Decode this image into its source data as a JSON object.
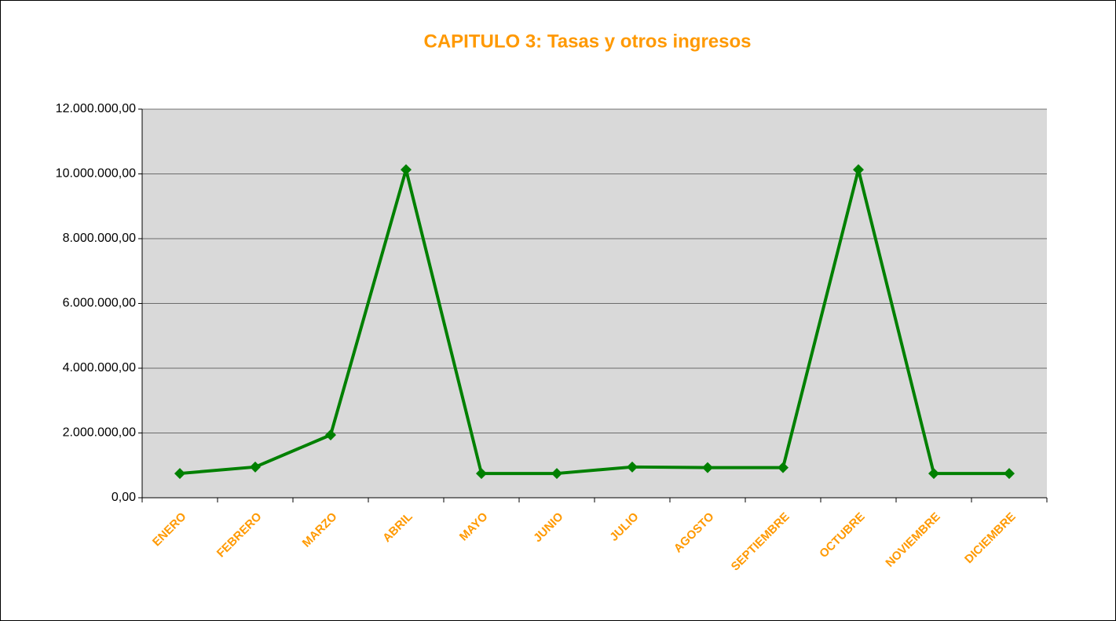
{
  "chart_data": {
    "type": "line",
    "title": "CAPITULO 3: Tasas y otros ingresos",
    "categories": [
      "ENERO",
      "FEBRERO",
      "MARZO",
      "ABRIL",
      "MAYO",
      "JUNIO",
      "JULIO",
      "AGOSTO",
      "SEPTIEMBRE",
      "OCTUBRE",
      "NOVIEMBRE",
      "DICIEMBRE"
    ],
    "series": [
      {
        "name": "CAPITULO 3",
        "color": "#008000",
        "values": [
          750000,
          950000,
          1940000,
          10130000,
          750000,
          750000,
          950000,
          930000,
          930000,
          10130000,
          750000,
          750000
        ]
      }
    ],
    "ylim": [
      0,
      12000000
    ],
    "yticks": [
      {
        "value": 0,
        "label": "0,00"
      },
      {
        "value": 2000000,
        "label": "2.000.000,00"
      },
      {
        "value": 4000000,
        "label": "4.000.000,00"
      },
      {
        "value": 6000000,
        "label": "6.000.000,00"
      },
      {
        "value": 8000000,
        "label": "8.000.000,00"
      },
      {
        "value": 10000000,
        "label": "10.000.000,00"
      },
      {
        "value": 12000000,
        "label": "12.000.000,00"
      }
    ],
    "grid": true,
    "plot_background": "#d9d9d9",
    "title_color": "#ff9900"
  }
}
